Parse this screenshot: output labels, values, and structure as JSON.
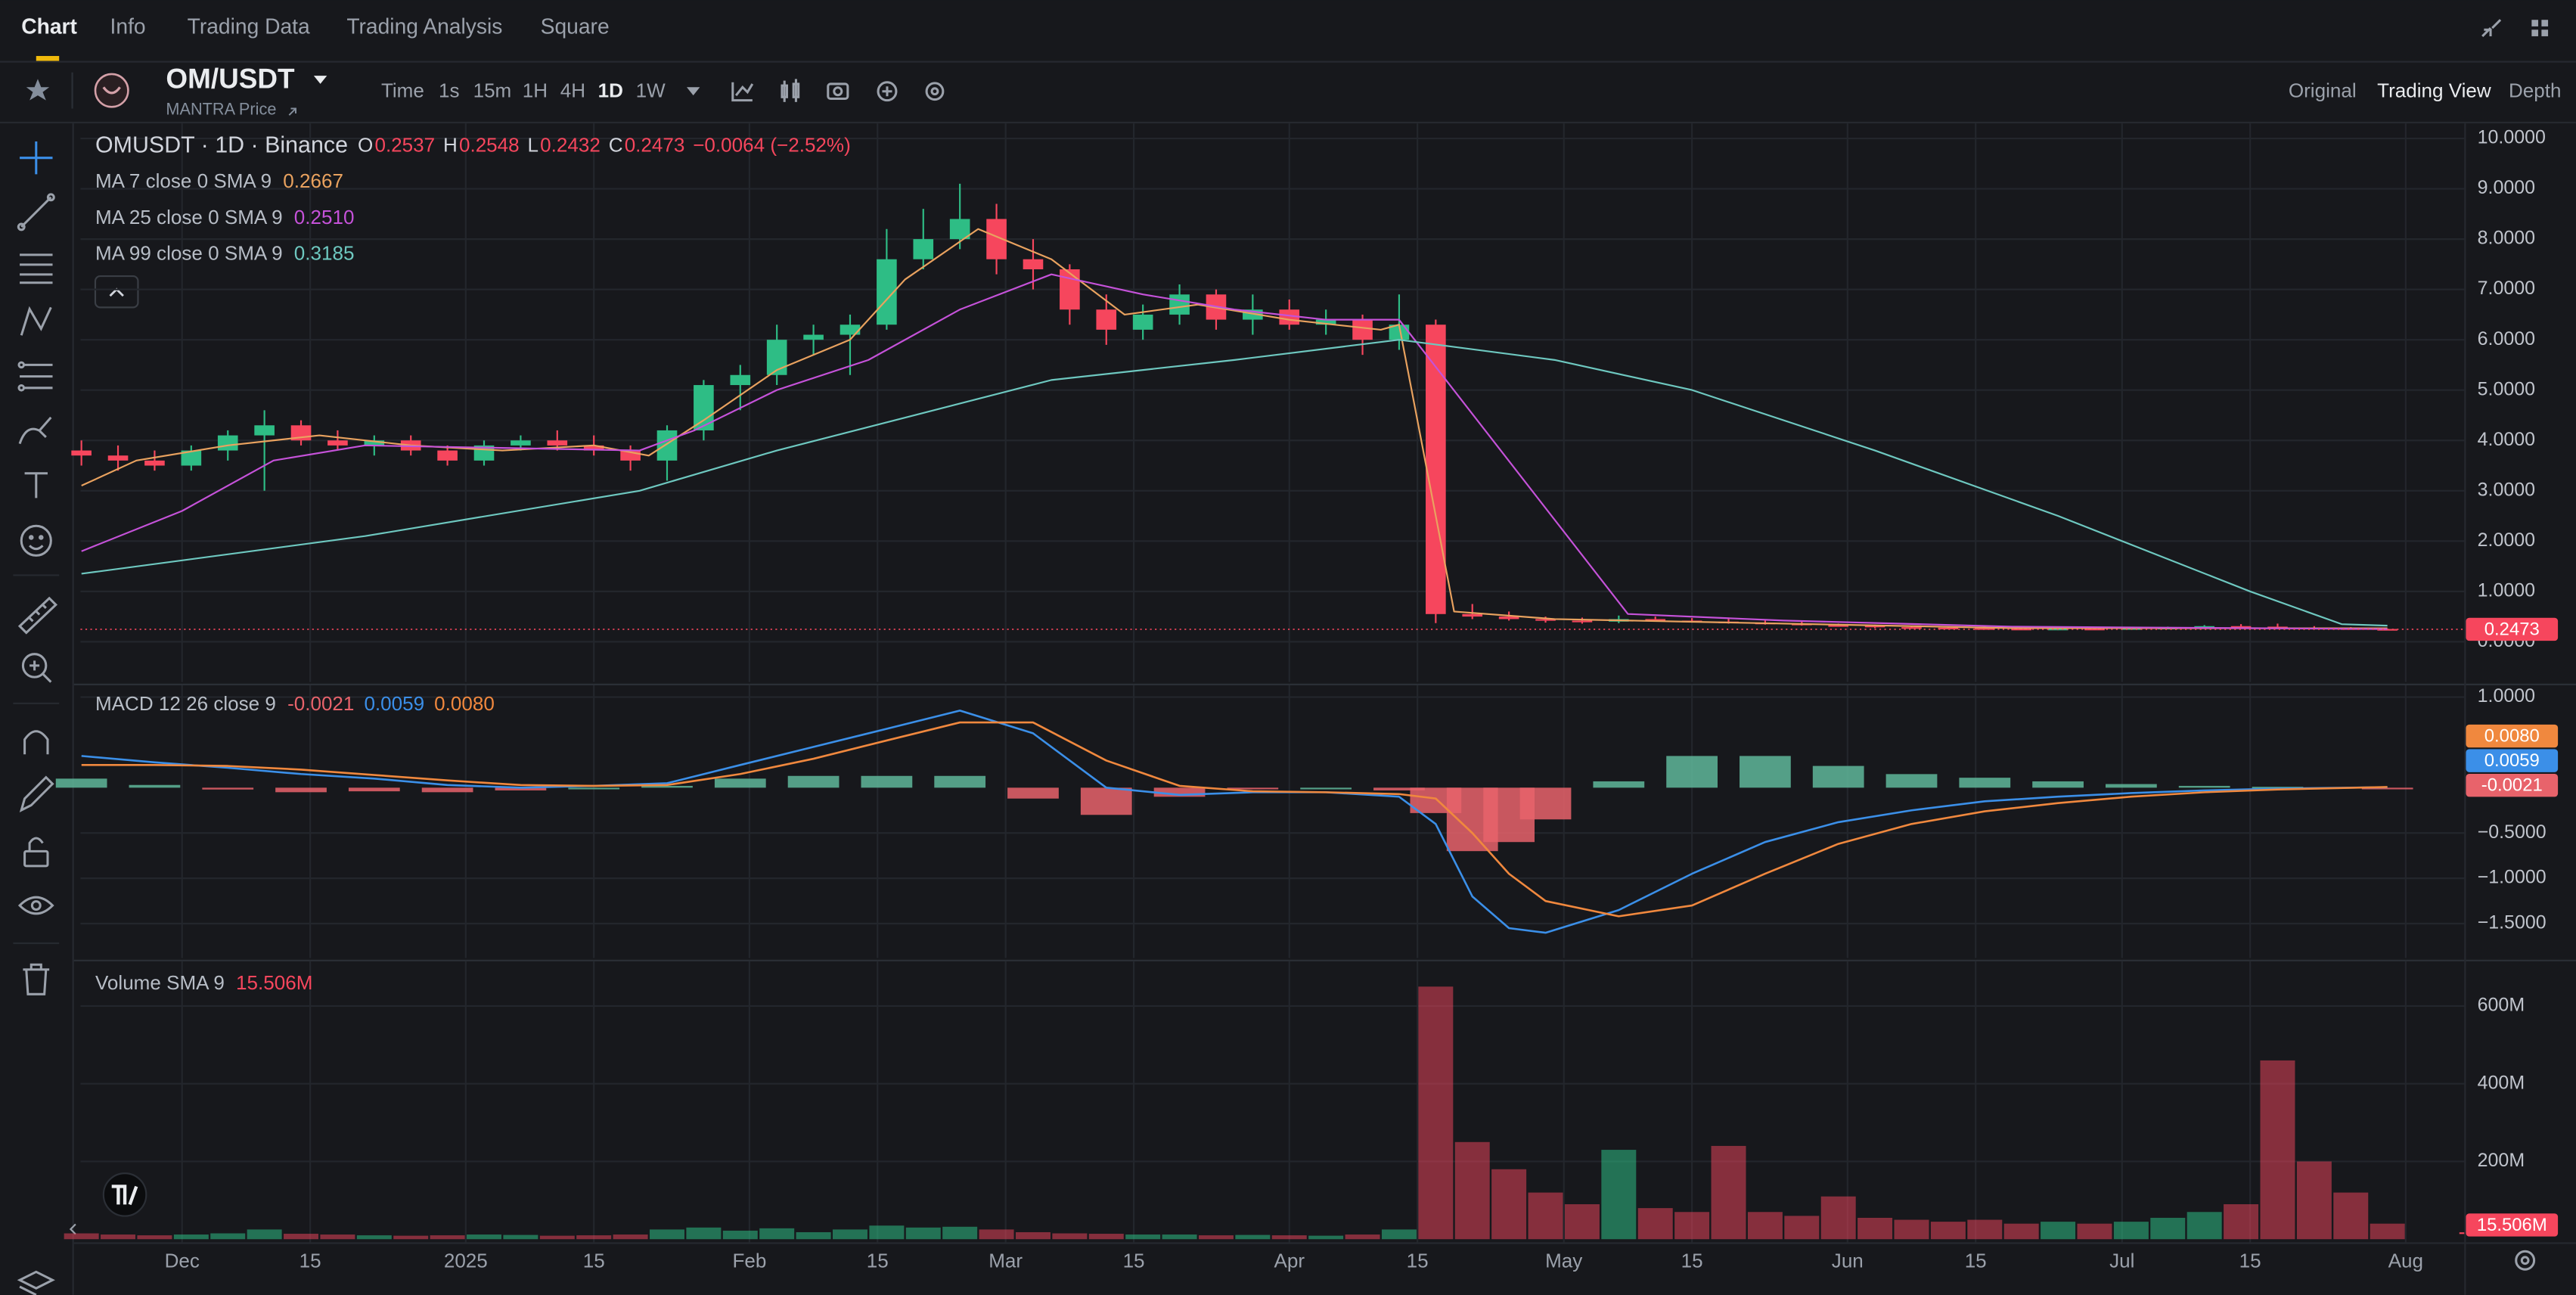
{
  "ui": {
    "tabs": [
      "Chart",
      "Info",
      "Trading Data",
      "Trading Analysis",
      "Square"
    ],
    "symbol": "OM/USDT",
    "subtitle": "MANTRA Price",
    "intervals": [
      "Time",
      "1s",
      "15m",
      "1H",
      "4H",
      "1D",
      "1W"
    ],
    "views": [
      "Original",
      "Trading View",
      "Depth"
    ]
  },
  "chart_data": [
    {
      "type": "candlestick",
      "title": "OMUSDT · 1D · Binance",
      "ohlc_labels": [
        "O",
        "H",
        "L",
        "C"
      ],
      "change": "−0.0064 (−2.52%)",
      "x": [
        -11,
        -7,
        -3,
        1,
        5,
        9,
        13,
        17,
        21,
        25,
        29,
        33,
        37,
        41,
        45,
        49,
        53,
        57,
        61,
        65,
        69,
        73,
        77,
        81,
        85,
        89,
        93,
        97,
        101,
        105,
        109,
        113,
        117,
        121,
        125,
        129,
        133,
        137,
        141,
        145,
        149,
        153,
        157,
        161,
        165,
        169,
        173,
        177,
        181,
        185,
        189,
        193,
        197,
        201,
        205,
        209,
        213,
        217,
        221,
        225,
        229,
        233,
        237,
        241
      ],
      "open": [
        3.8,
        3.7,
        3.6,
        3.5,
        3.8,
        4.1,
        4.3,
        4.0,
        3.9,
        4.0,
        3.8,
        3.6,
        3.9,
        4.0,
        3.9,
        3.8,
        3.6,
        4.2,
        5.1,
        5.3,
        6.0,
        6.1,
        6.3,
        7.6,
        8.0,
        8.4,
        7.6,
        7.4,
        6.6,
        6.2,
        6.5,
        6.9,
        6.4,
        6.6,
        6.3,
        6.4,
        6.0,
        6.3,
        0.55,
        0.5,
        0.45,
        0.42,
        0.4,
        0.45,
        0.42,
        0.4,
        0.38,
        0.36,
        0.33,
        0.32,
        0.29,
        0.28,
        0.27,
        0.26,
        0.25,
        0.26,
        0.25,
        0.27,
        0.28,
        0.31,
        0.3,
        0.28,
        0.27,
        0.2537
      ],
      "high": [
        4.0,
        3.9,
        3.8,
        3.9,
        4.2,
        4.6,
        4.4,
        4.2,
        4.1,
        4.1,
        3.9,
        4.0,
        4.1,
        4.2,
        4.1,
        3.9,
        4.3,
        5.2,
        5.5,
        6.3,
        6.3,
        6.5,
        8.2,
        8.6,
        9.1,
        8.7,
        8.0,
        7.5,
        6.9,
        6.7,
        7.1,
        7.0,
        6.9,
        6.8,
        6.6,
        6.5,
        6.9,
        6.4,
        0.75,
        0.6,
        0.5,
        0.48,
        0.52,
        0.5,
        0.47,
        0.46,
        0.42,
        0.4,
        0.36,
        0.34,
        0.32,
        0.3,
        0.3,
        0.28,
        0.27,
        0.28,
        0.29,
        0.3,
        0.33,
        0.35,
        0.36,
        0.31,
        0.29,
        0.2548
      ],
      "low": [
        3.5,
        3.4,
        3.4,
        3.4,
        3.6,
        3.0,
        3.9,
        3.8,
        3.7,
        3.7,
        3.5,
        3.5,
        3.8,
        3.8,
        3.7,
        3.4,
        3.2,
        4.0,
        4.6,
        5.1,
        5.7,
        5.3,
        6.2,
        7.4,
        7.8,
        7.3,
        7.0,
        6.3,
        5.9,
        6.0,
        6.3,
        6.2,
        6.1,
        6.2,
        6.1,
        5.7,
        5.8,
        0.37,
        0.45,
        0.42,
        0.38,
        0.36,
        0.37,
        0.4,
        0.38,
        0.36,
        0.34,
        0.32,
        0.3,
        0.27,
        0.26,
        0.25,
        0.25,
        0.24,
        0.23,
        0.24,
        0.24,
        0.25,
        0.27,
        0.28,
        0.27,
        0.25,
        0.25,
        0.2432
      ],
      "close": [
        3.7,
        3.6,
        3.5,
        3.8,
        4.1,
        4.3,
        4.0,
        3.9,
        4.0,
        3.8,
        3.6,
        3.9,
        4.0,
        3.9,
        3.8,
        3.6,
        4.2,
        5.1,
        5.3,
        6.0,
        6.1,
        6.3,
        7.6,
        8.0,
        8.4,
        7.6,
        7.4,
        6.6,
        6.2,
        6.5,
        6.9,
        6.4,
        6.6,
        6.3,
        6.4,
        6.0,
        6.3,
        0.55,
        0.5,
        0.45,
        0.42,
        0.4,
        0.45,
        0.42,
        0.4,
        0.38,
        0.36,
        0.33,
        0.32,
        0.29,
        0.28,
        0.27,
        0.26,
        0.25,
        0.26,
        0.25,
        0.27,
        0.28,
        0.31,
        0.3,
        0.28,
        0.27,
        0.2537,
        0.2473
      ],
      "up_color": "#2ebd85",
      "down_color": "#f6465d",
      "series": [
        {
          "name": "MA 7 close 0 SMA 9",
          "color": "#e9a25f",
          "x": [
            -11,
            -5,
            5,
            15,
            25,
            35,
            45,
            51,
            57,
            65,
            73,
            79,
            87,
            95,
            103,
            111,
            121,
            131,
            133,
            139,
            150,
            170,
            200,
            241
          ],
          "values": [
            3.1,
            3.6,
            3.9,
            4.1,
            3.9,
            3.8,
            3.9,
            3.7,
            4.4,
            5.4,
            6.0,
            7.2,
            8.2,
            7.6,
            6.5,
            6.7,
            6.4,
            6.2,
            6.3,
            0.6,
            0.45,
            0.38,
            0.27,
            0.2667
          ]
        },
        {
          "name": "MA 25 close 0 SMA 9",
          "color": "#c552d9",
          "x": [
            -11,
            0,
            10,
            20,
            50,
            56,
            65,
            75,
            85,
            95,
            105,
            115,
            125,
            133,
            158,
            175,
            200,
            241
          ],
          "values": [
            1.8,
            2.6,
            3.6,
            3.9,
            3.8,
            4.2,
            5.0,
            5.6,
            6.6,
            7.3,
            6.9,
            6.6,
            6.4,
            6.4,
            0.55,
            0.42,
            0.3,
            0.251
          ],
          "value_labels": [
            null,
            null,
            null,
            null,
            null,
            null,
            null,
            null,
            null,
            null,
            null,
            null,
            null,
            null,
            null,
            null,
            null,
            "0.2510"
          ]
        },
        {
          "name": "MA 99 close 0 SMA 9",
          "color": "#6ec8c0",
          "x": [
            -11,
            20,
            50,
            65,
            80,
            95,
            115,
            133,
            150,
            165,
            185,
            205,
            226,
            236,
            241
          ],
          "values": [
            1.35,
            2.1,
            3.0,
            3.8,
            4.5,
            5.2,
            5.6,
            6.0,
            5.6,
            5.0,
            3.8,
            2.5,
            1.0,
            0.35,
            0.3185
          ]
        }
      ],
      "xlim": [
        -11.1,
        249.4
      ],
      "ylim": [
        -0.8,
        10.3
      ],
      "yticks": [
        {
          "value": 0,
          "label": "0.0000"
        },
        {
          "value": 1,
          "label": "1.0000"
        },
        {
          "value": 2,
          "label": "2.0000"
        },
        {
          "value": 3,
          "label": "3.0000"
        },
        {
          "value": 4,
          "label": "4.0000"
        },
        {
          "value": 5,
          "label": "5.0000"
        },
        {
          "value": 6,
          "label": "6.0000"
        },
        {
          "value": 7,
          "label": "7.0000"
        },
        {
          "value": 8,
          "label": "8.0000"
        },
        {
          "value": 9,
          "label": "9.0000"
        },
        {
          "value": 10,
          "label": "10.0000"
        }
      ],
      "grid": true
    },
    {
      "type": "macd",
      "title": "MACD 12 26 close 9",
      "x": [
        -11,
        -3,
        5,
        13,
        21,
        29,
        37,
        45,
        53,
        61,
        69,
        77,
        85,
        93,
        101,
        109,
        117,
        125,
        133,
        137,
        141,
        145,
        149,
        157,
        165,
        173,
        181,
        189,
        197,
        205,
        213,
        221,
        229,
        241
      ],
      "histogram": {
        "up_color": "#5fb79a",
        "down_color": "#e8636b",
        "values": [
          0.1,
          0.03,
          -0.02,
          -0.05,
          -0.04,
          -0.05,
          -0.03,
          0,
          0.02,
          0.1,
          0.13,
          0.13,
          0.13,
          -0.12,
          -0.3,
          -0.1,
          -0.01,
          0,
          -0.03,
          -0.28,
          -0.7,
          -0.6,
          -0.35,
          0.07,
          0.35,
          0.35,
          0.24,
          0.15,
          0.11,
          0.07,
          0.04,
          0.02,
          0.01,
          -0.0021
        ]
      },
      "macd": {
        "color": "#3b8fe8",
        "values": [
          0.35,
          0.28,
          0.22,
          0.15,
          0.1,
          0.03,
          0.0,
          0.02,
          0.05,
          0.25,
          0.45,
          0.65,
          0.85,
          0.6,
          0.0,
          -0.08,
          -0.05,
          -0.05,
          -0.1,
          -0.4,
          -1.2,
          -1.55,
          -1.6,
          -1.35,
          -0.95,
          -0.6,
          -0.38,
          -0.25,
          -0.15,
          -0.1,
          -0.06,
          -0.03,
          -0.01,
          0.0059
        ]
      },
      "signal": {
        "color": "#f0883e",
        "values": [
          0.25,
          0.25,
          0.24,
          0.2,
          0.14,
          0.08,
          0.03,
          0.02,
          0.03,
          0.15,
          0.32,
          0.52,
          0.72,
          0.72,
          0.3,
          0.02,
          -0.04,
          -0.05,
          -0.07,
          -0.12,
          -0.5,
          -0.95,
          -1.25,
          -1.42,
          -1.3,
          -0.95,
          -0.62,
          -0.4,
          -0.26,
          -0.17,
          -0.1,
          -0.05,
          -0.02,
          0.008
        ],
        "value_labels": [
          null,
          null,
          null,
          null,
          null,
          null,
          null,
          null,
          null,
          null,
          null,
          null,
          null,
          null,
          null,
          null,
          null,
          null,
          null,
          null,
          null,
          null,
          null,
          null,
          null,
          null,
          null,
          null,
          null,
          null,
          null,
          null,
          null,
          "0.0080"
        ]
      },
      "xlim": [
        -11.1,
        249.4
      ],
      "ylim": [
        -1.88,
        1.13
      ],
      "yticks": [
        {
          "value": 1,
          "label": "1.0000"
        },
        {
          "value": -0.5,
          "label": "−0.5000"
        },
        {
          "value": -1,
          "label": "−1.0000"
        },
        {
          "value": -1.5,
          "label": "−1.5000"
        }
      ],
      "grid": true
    },
    {
      "type": "volume",
      "title": "Volume SMA 9",
      "sma": {
        "value": 15506000,
        "value_label": "15.506M"
      },
      "sma_color": "#f6465d",
      "x": [
        -11,
        -7,
        -3,
        1,
        5,
        9,
        13,
        17,
        21,
        25,
        29,
        33,
        37,
        41,
        45,
        49,
        53,
        57,
        61,
        65,
        69,
        73,
        77,
        81,
        85,
        89,
        93,
        97,
        101,
        105,
        109,
        113,
        117,
        121,
        125,
        129,
        133,
        137,
        141,
        145,
        149,
        153,
        157,
        161,
        165,
        169,
        173,
        177,
        181,
        185,
        189,
        193,
        197,
        201,
        205,
        209,
        213,
        217,
        221,
        225,
        229,
        233,
        237,
        241
      ],
      "values": [
        15000000,
        12000000,
        10000000,
        12000000,
        15000000,
        25000000,
        14000000,
        12000000,
        10000000,
        9000000,
        10000000,
        12000000,
        11000000,
        9000000,
        10000000,
        12000000,
        25000000,
        30000000,
        22000000,
        28000000,
        18000000,
        25000000,
        35000000,
        30000000,
        32000000,
        25000000,
        18000000,
        15000000,
        14000000,
        12000000,
        12000000,
        10000000,
        11000000,
        10000000,
        9000000,
        12000000,
        25000000,
        650000000,
        250000000,
        180000000,
        120000000,
        90000000,
        230000000,
        80000000,
        70000000,
        240000000,
        70000000,
        60000000,
        110000000,
        55000000,
        50000000,
        45000000,
        50000000,
        40000000,
        45000000,
        40000000,
        45000000,
        55000000,
        70000000,
        90000000,
        460000000,
        200000000,
        120000000,
        40000000
      ],
      "up_color": "rgba(46,189,133,0.55)",
      "down_color": "rgba(246,70,93,0.5)",
      "xlim": [
        -11.1,
        249.4
      ],
      "ylim": [
        -8000000,
        715000000
      ],
      "yticks": [
        {
          "value": 200000000,
          "label": "200M"
        },
        {
          "value": 400000000,
          "label": "400M"
        },
        {
          "value": 600000000,
          "label": "600M"
        }
      ],
      "xticks": [
        {
          "value": 0,
          "label": "Dec"
        },
        {
          "value": 14,
          "label": "15"
        },
        {
          "value": 31,
          "label": "2025"
        },
        {
          "value": 45,
          "label": "15"
        },
        {
          "value": 62,
          "label": "Feb"
        },
        {
          "value": 76,
          "label": "15"
        },
        {
          "value": 90,
          "label": "Mar"
        },
        {
          "value": 104,
          "label": "15"
        },
        {
          "value": 121,
          "label": "Apr"
        },
        {
          "value": 135,
          "label": "15"
        },
        {
          "value": 151,
          "label": "May"
        },
        {
          "value": 165,
          "label": "15"
        },
        {
          "value": 182,
          "label": "Jun"
        },
        {
          "value": 196,
          "label": "15"
        },
        {
          "value": 212,
          "label": "Jul"
        },
        {
          "value": 226,
          "label": "15"
        },
        {
          "value": 243,
          "label": "Aug"
        }
      ],
      "grid": true
    }
  ]
}
